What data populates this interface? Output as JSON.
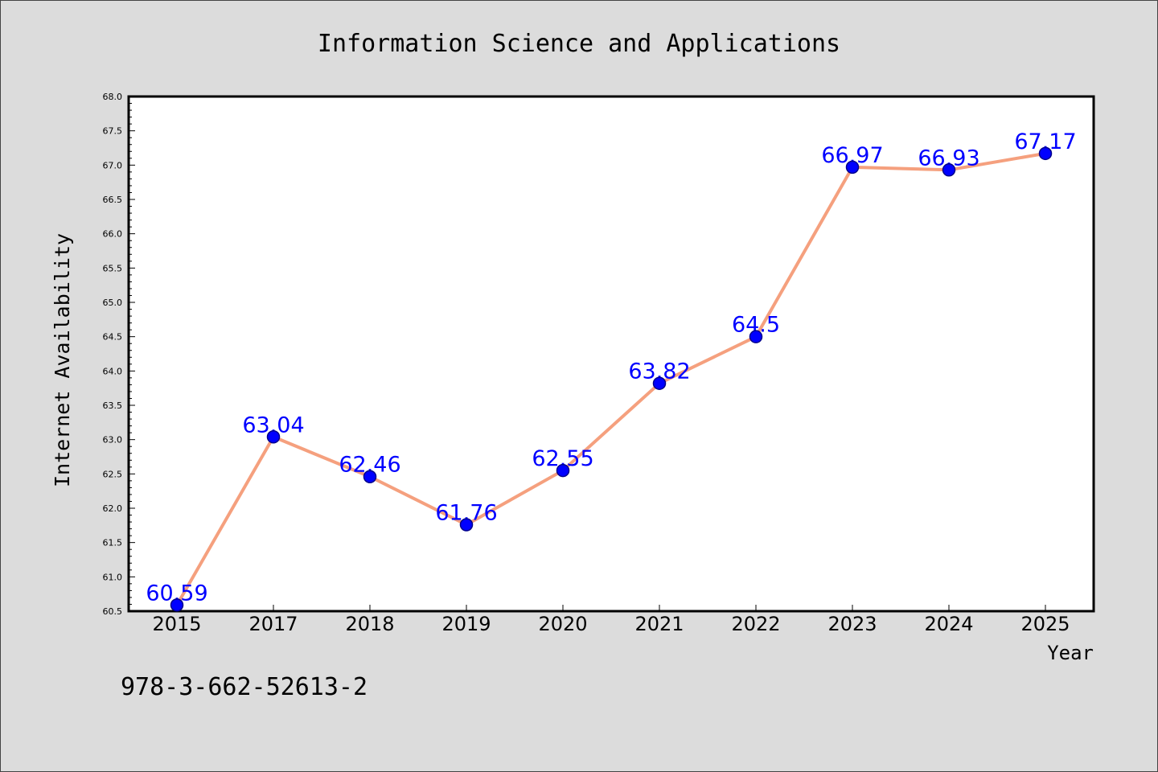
{
  "chart_data": {
    "type": "line",
    "title": "Information Science and Applications",
    "xlabel": "Year",
    "ylabel": "Internet Availability",
    "categories": [
      "2015",
      "2017",
      "2018",
      "2019",
      "2020",
      "2021",
      "2022",
      "2023",
      "2024",
      "2025"
    ],
    "series": [
      {
        "values": [
          60.59,
          63.04,
          62.46,
          61.76,
          62.55,
          63.82,
          64.5,
          66.97,
          66.93,
          67.17
        ],
        "color": "#f5a07e",
        "marker_color": "#0000ff",
        "marker_edge_color": "#00008b",
        "data_label_color": "#0000ff",
        "data_labels": true
      }
    ],
    "ylim": [
      60.5,
      68.0
    ],
    "yticks": [
      "60.5",
      "61.0",
      "61.5",
      "62.0",
      "62.5",
      "63.0",
      "63.5",
      "64.0",
      "64.5",
      "65.0",
      "65.5",
      "66.0",
      "66.5",
      "67.0",
      "67.5",
      "68.0"
    ],
    "grid": false
  },
  "footnote": "978-3-662-52613-2",
  "colors": {
    "figure_background": "#dcdcdc",
    "plot_background": "#ffffff",
    "axis": "#000000"
  }
}
